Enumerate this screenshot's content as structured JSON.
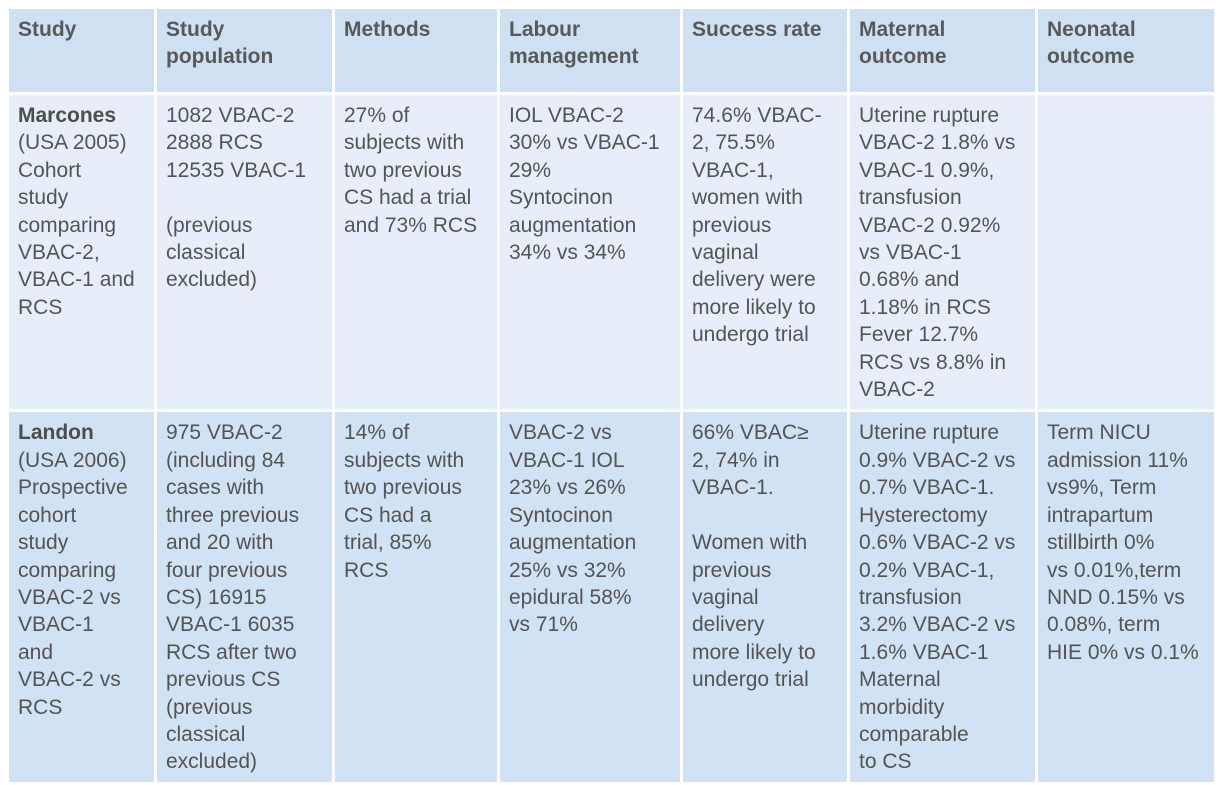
{
  "headers": [
    "Study",
    "Study\npopulation",
    "Methods",
    "Labour\nmanagement",
    "Success rate",
    "Maternal\noutcome",
    "Neonatal\noutcome"
  ],
  "rows": [
    {
      "study_name": "Marcones",
      "study_detail": "(USA 2005)\nCohort\nstudy\ncomparing\nVBAC-2,\nVBAC-1 and\nRCS",
      "population": "1082 VBAC-2\n2888 RCS\n12535 VBAC-1\n\n(previous\nclassical\nexcluded)",
      "methods": "27% of\nsubjects with\ntwo previous\nCS had a trial\nand 73% RCS",
      "labour": "IOL VBAC-2\n30% vs VBAC-1\n29%\nSyntocinon\naugmentation\n34% vs 34%",
      "success": "74.6% VBAC-\n2, 75.5%\nVBAC-1,\nwomen with\nprevious\nvaginal\ndelivery were\nmore likely to\nundergo trial",
      "maternal": "Uterine rupture\nVBAC-2 1.8% vs\nVBAC-1 0.9%,\ntransfusion\nVBAC-2 0.92%\nvs VBAC-1\n0.68% and\n1.18% in RCS\nFever 12.7%\nRCS vs 8.8% in\nVBAC-2",
      "neonatal": ""
    },
    {
      "study_name": "Landon",
      "study_detail": "(USA 2006)\nProspective\ncohort\nstudy\ncomparing\nVBAC-2 vs\nVBAC-1\nand\nVBAC-2 vs\nRCS",
      "population": "975 VBAC-2\n(including 84\ncases with\nthree previous\nand 20 with\nfour previous\nCS) 16915\nVBAC-1 6035\nRCS after two\nprevious CS\n(previous\nclassical\nexcluded)",
      "methods": "14% of\nsubjects with\ntwo previous\nCS had a\ntrial, 85%\nRCS",
      "labour": "VBAC-2 vs\nVBAC-1 IOL\n23% vs 26%\nSyntocinon\naugmentation\n25% vs 32%\nepidural 58%\nvs 71%",
      "success": "66% VBAC≥\n2, 74% in\nVBAC-1.\n\nWomen with\nprevious\nvaginal\ndelivery\nmore likely to\nundergo trial",
      "maternal": "Uterine rupture\n0.9% VBAC-2 vs\n0.7% VBAC-1.\nHysterectomy\n0.6% VBAC-2 vs\n0.2% VBAC-1,\n transfusion\n3.2% VBAC-2 vs\n1.6% VBAC-1\nMaternal\nmorbidity\ncomparable\nto CS",
      "neonatal": "Term NICU\nadmission 11%\nvs9%, Term\nintrapartum\nstillbirth 0%\nvs 0.01%,term\nNND 0.15% vs\n0.08%, term\nHIE 0% vs 0.1%"
    }
  ]
}
